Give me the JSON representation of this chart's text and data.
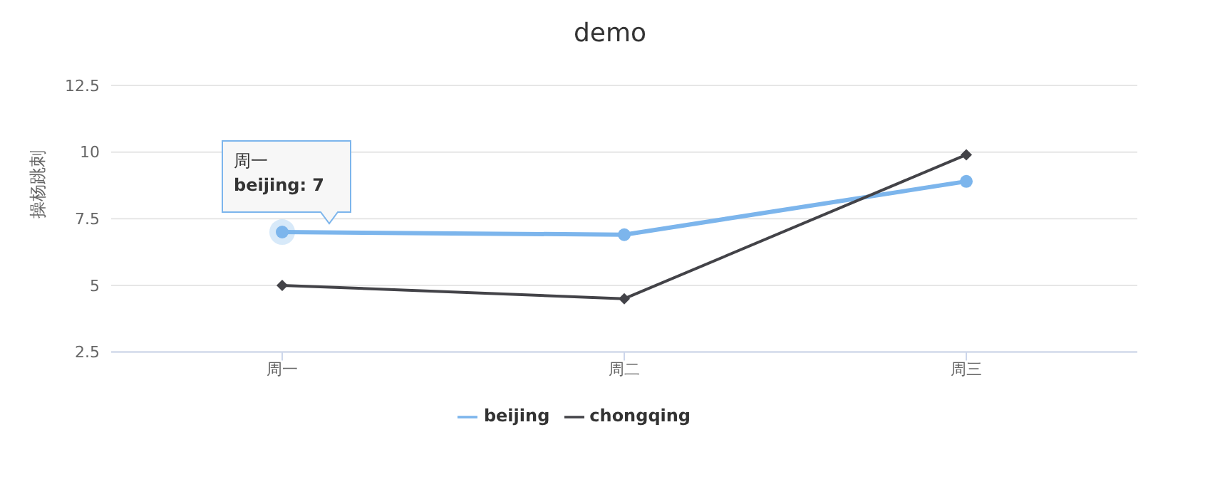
{
  "chart_data": {
    "type": "line",
    "title": "demo",
    "ylabel": "操杨跳刺",
    "categories": [
      "周一",
      "周二",
      "周三"
    ],
    "series": [
      {
        "name": "beijing",
        "color": "#7cb5ec",
        "values": [
          7,
          6.9,
          8.9
        ],
        "marker": "circle"
      },
      {
        "name": "chongqing",
        "color": "#434348",
        "values": [
          5,
          4.5,
          9.9
        ],
        "marker": "diamond"
      }
    ],
    "ylim": [
      2.5,
      12.5
    ],
    "yticks": [
      2.5,
      5,
      7.5,
      10,
      12.5
    ],
    "grid": "y",
    "legend": "bottom",
    "annotations": [
      {
        "text": "周一\nbeijing: 7",
        "x": "周一",
        "y": 7
      }
    ]
  }
}
